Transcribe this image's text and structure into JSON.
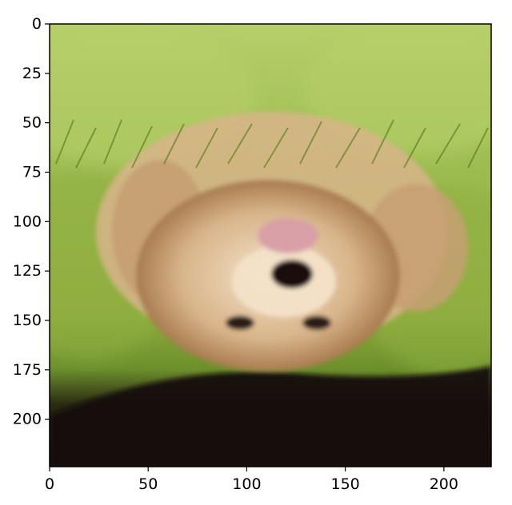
{
  "figure": {
    "kind": "image-preview",
    "subject": "puppy on grass (upside-down)",
    "x_axis": {
      "min": 0,
      "max": 224,
      "ticks": [
        "0",
        "50",
        "100",
        "150",
        "200"
      ],
      "tick_values": [
        0,
        50,
        100,
        150,
        200
      ]
    },
    "y_axis": {
      "min": 0,
      "max": 224,
      "inverted": true,
      "ticks": [
        "0",
        "25",
        "50",
        "75",
        "100",
        "125",
        "150",
        "175",
        "200"
      ],
      "tick_values": [
        0,
        25,
        50,
        75,
        100,
        125,
        150,
        175,
        200
      ]
    }
  },
  "colors": {
    "grass_light": "#b7cf6a",
    "grass_mid": "#8fae3f",
    "grass_dark": "#5e7a22",
    "shadow": "#140f08",
    "fur_light": "#f3e2c8",
    "fur_mid": "#d8b48a",
    "fur_dark": "#8b5a2b",
    "tongue": "#d8a0a6"
  }
}
